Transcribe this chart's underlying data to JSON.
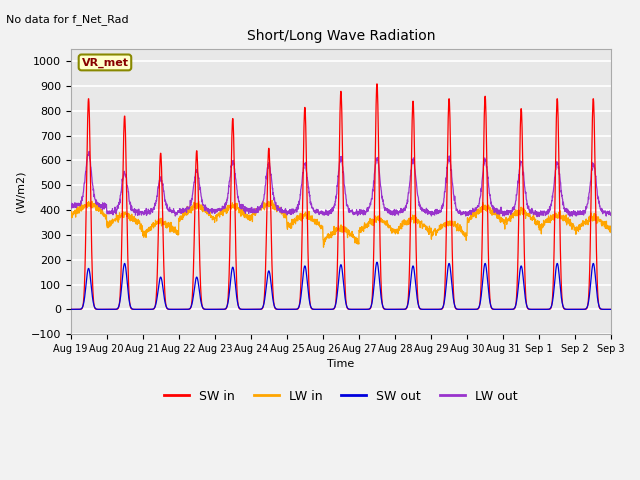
{
  "title": "Short/Long Wave Radiation",
  "xlabel": "Time",
  "ylabel": "(W/m2)",
  "ylim": [
    -100,
    1050
  ],
  "yticks": [
    -100,
    0,
    100,
    200,
    300,
    400,
    500,
    600,
    700,
    800,
    900,
    1000
  ],
  "annotation_text": "No data for f_Net_Rad",
  "box_label": "VR_met",
  "num_days": 15,
  "pts_per_day": 144,
  "background_color": "#e8e8e8",
  "plot_bg_color": "#e8e8e8",
  "grid_color": "#ffffff",
  "colors": {
    "sw_in": "#ff0000",
    "lw_in": "#ffa500",
    "sw_out": "#0000dd",
    "lw_out": "#9933cc"
  },
  "sw_in_peaks": [
    850,
    780,
    630,
    640,
    770,
    650,
    815,
    880,
    910,
    840,
    850,
    860,
    810,
    850,
    850
  ],
  "sw_out_peaks": [
    165,
    185,
    130,
    130,
    170,
    155,
    175,
    180,
    190,
    175,
    185,
    185,
    175,
    185,
    185
  ],
  "lw_in_base": [
    400,
    360,
    330,
    390,
    390,
    400,
    355,
    300,
    340,
    340,
    325,
    385,
    370,
    355,
    345
  ],
  "lw_out_base": [
    415,
    390,
    390,
    395,
    400,
    395,
    390,
    385,
    390,
    390,
    385,
    390,
    385,
    385,
    385
  ],
  "lw_out_peaks": [
    600,
    530,
    510,
    540,
    570,
    560,
    560,
    580,
    580,
    575,
    580,
    575,
    570,
    565,
    560
  ],
  "x_tick_labels": [
    "Aug 19",
    "Aug 20",
    "Aug 21",
    "Aug 22",
    "Aug 23",
    "Aug 24",
    "Aug 25",
    "Aug 26",
    "Aug 27",
    "Aug 28",
    "Aug 29",
    "Aug 30",
    "Aug 31",
    "Sep 1",
    "Sep 2",
    "Sep 3"
  ],
  "figsize": [
    6.4,
    4.8
  ],
  "dpi": 100
}
